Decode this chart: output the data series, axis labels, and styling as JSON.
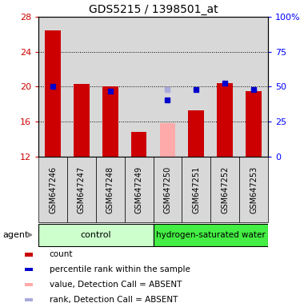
{
  "title": "GDS5215 / 1398501_at",
  "samples": [
    "GSM647246",
    "GSM647247",
    "GSM647248",
    "GSM647249",
    "GSM647250",
    "GSM647251",
    "GSM647252",
    "GSM647253"
  ],
  "red_values": [
    26.5,
    20.3,
    20.0,
    14.8,
    null,
    17.3,
    20.4,
    19.5
  ],
  "blue_values": [
    20.0,
    null,
    19.5,
    null,
    18.5,
    19.7,
    20.4,
    19.7
  ],
  "pink_values": [
    null,
    null,
    null,
    null,
    15.8,
    null,
    null,
    null
  ],
  "lavender_values": [
    null,
    null,
    null,
    null,
    19.7,
    null,
    null,
    null
  ],
  "ylim": [
    12,
    28
  ],
  "yticks_left": [
    12,
    16,
    20,
    24,
    28
  ],
  "yticks_right_pct": [
    0,
    25,
    50,
    75,
    100
  ],
  "ytick_right_labels": [
    "0",
    "25",
    "50",
    "75",
    "100%"
  ],
  "red_color": "#cc0000",
  "blue_color": "#0000cc",
  "pink_color": "#ffaaaa",
  "lavender_color": "#aaaadd",
  "background_sample": "#d8d8d8",
  "background_group_control": "#ccffcc",
  "background_group_hw": "#44ee44",
  "legend_items": [
    {
      "color": "#cc0000",
      "label": "count"
    },
    {
      "color": "#0000cc",
      "label": "percentile rank within the sample"
    },
    {
      "color": "#ffaaaa",
      "label": "value, Detection Call = ABSENT"
    },
    {
      "color": "#aaaadd",
      "label": "rank, Detection Call = ABSENT"
    }
  ]
}
